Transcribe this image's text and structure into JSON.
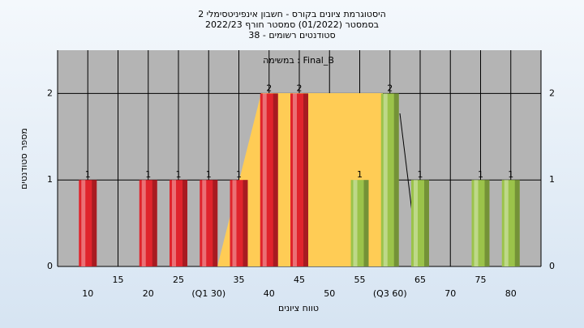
{
  "chart_data": {
    "type": "bar",
    "title": [
      "היסטוגרמת ציונים בקורס - חשבון אינפיניטסימלי 2",
      "בסמסטר  (01/2022)  סמסטר חורף 2022/23",
      "סטודנטים רשומים - 38"
    ],
    "subtitle": "במשימה : Final_B",
    "x_label": "טווח ציונים",
    "y_label": "מספר סטודנטים",
    "categories": [
      "10",
      "15",
      "20",
      "25",
      "(Q1 30)",
      "35",
      "40",
      "45",
      "50",
      "55",
      "(Q3 60)",
      "65",
      "70",
      "75",
      "80"
    ],
    "values": [
      1,
      0,
      1,
      1,
      1,
      1,
      2,
      2,
      0,
      1,
      2,
      1,
      0,
      1,
      1
    ],
    "colors": [
      "#e0242c",
      "#e0242c",
      "#e0242c",
      "#e0242c",
      "#e0242c",
      "#e0242c",
      "#e0242c",
      "#e0242c",
      "#9bc34a",
      "#9bc34a",
      "#9bc34a",
      "#9bc34a",
      "#9bc34a",
      "#9bc34a",
      "#9bc34a"
    ],
    "ylim": [
      0,
      2.5
    ],
    "yticks": [
      0,
      1,
      2
    ],
    "grid": true
  }
}
